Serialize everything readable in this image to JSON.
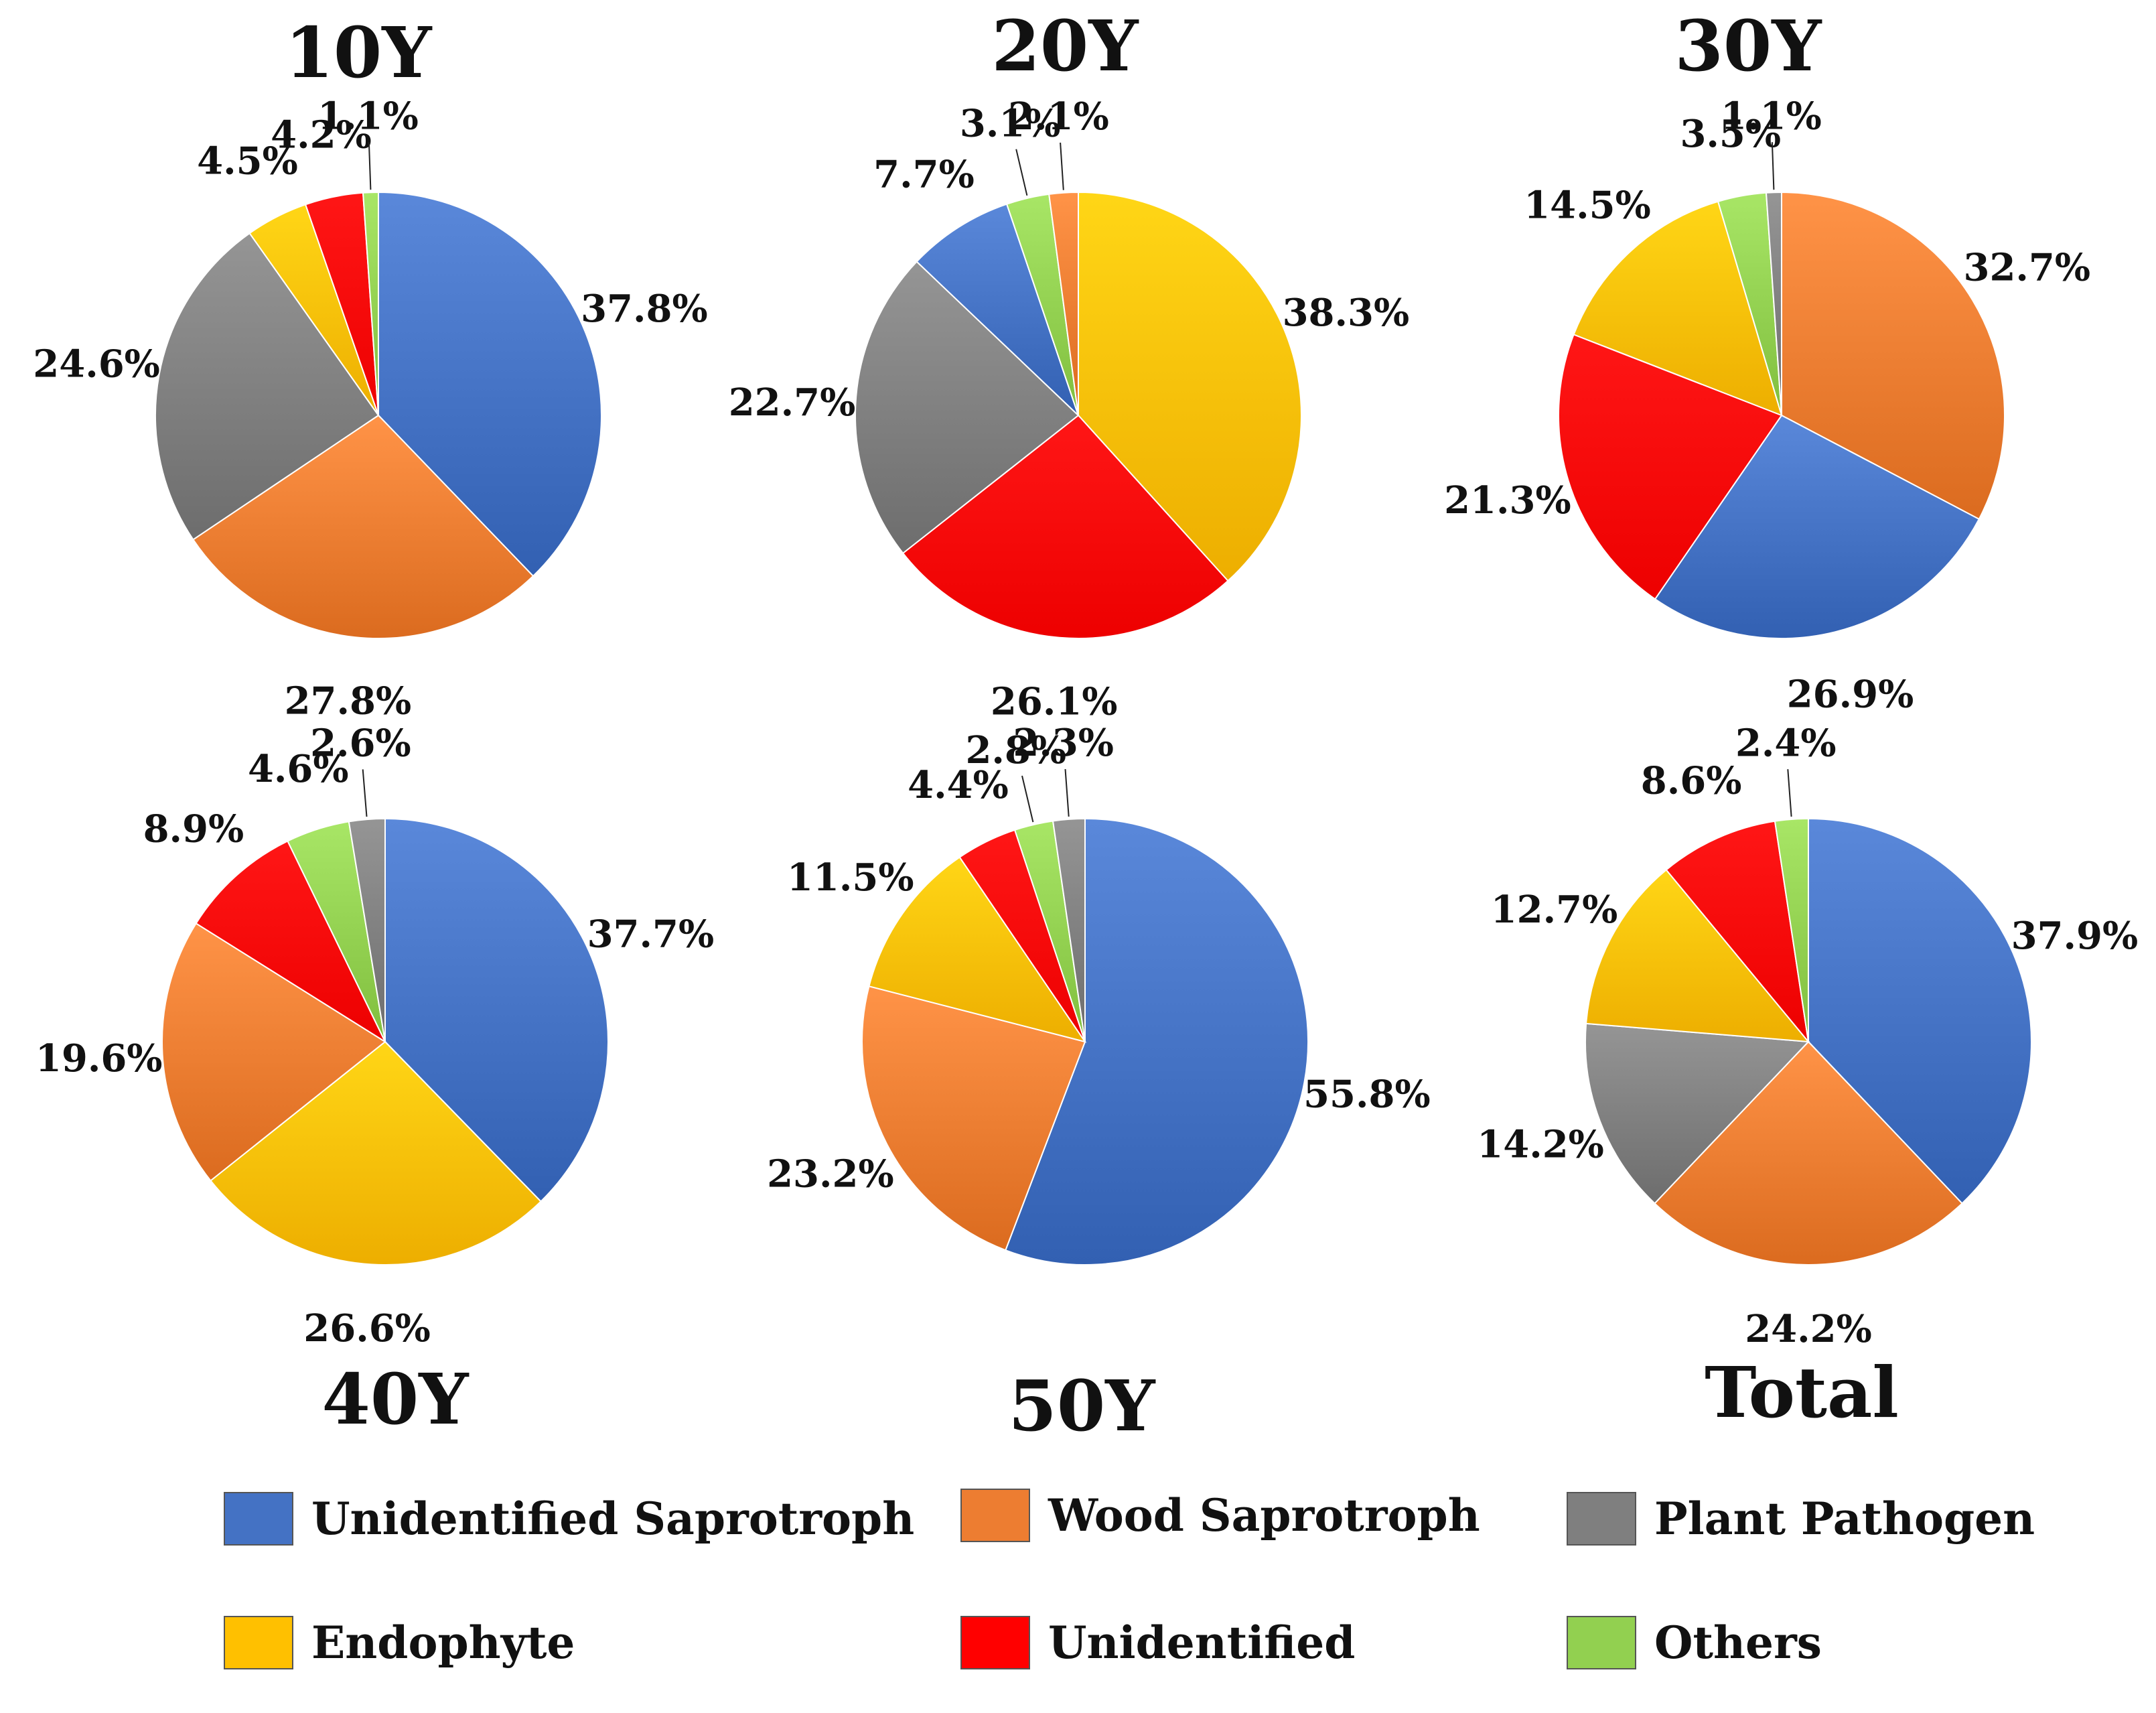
{
  "chart_data": {
    "type": "pie",
    "categories": [
      "Unidentified Saprotroph",
      "Wood Saprotroph",
      "Plant Pathogen",
      "Endophyte",
      "Unidentified",
      "Others"
    ],
    "colors": {
      "Unidentified Saprotroph": "#4472C4",
      "Wood Saprotroph": "#ED7D31",
      "Plant Pathogen": "#7F7F7F",
      "Endophyte": "#FFC000",
      "Unidentified": "#FF0000",
      "Others": "#92D050"
    },
    "charts": [
      {
        "title": "10Y",
        "slices": [
          {
            "category": "Unidentified Saprotroph",
            "value": 37.8,
            "label": "37.8%"
          },
          {
            "category": "Wood Saprotroph",
            "value": 27.8,
            "label": "27.8%"
          },
          {
            "category": "Plant Pathogen",
            "value": 24.6,
            "label": "24.6%"
          },
          {
            "category": "Endophyte",
            "value": 4.5,
            "label": "4.5%"
          },
          {
            "category": "Unidentified",
            "value": 4.2,
            "label": "4.2%"
          },
          {
            "category": "Others",
            "value": 1.1,
            "label": "1.1%"
          }
        ]
      },
      {
        "title": "20Y",
        "slices": [
          {
            "category": "Endophyte",
            "value": 38.3,
            "label": "38.3%"
          },
          {
            "category": "Unidentified",
            "value": 26.1,
            "label": "26.1%"
          },
          {
            "category": "Plant Pathogen",
            "value": 22.7,
            "label": "22.7%"
          },
          {
            "category": "Unidentified Saprotroph",
            "value": 7.7,
            "label": "7.7%"
          },
          {
            "category": "Others",
            "value": 3.1,
            "label": "3.1%"
          },
          {
            "category": "Wood Saprotroph",
            "value": 2.1,
            "label": "2.1%"
          }
        ]
      },
      {
        "title": "30Y",
        "slices": [
          {
            "category": "Wood Saprotroph",
            "value": 32.7,
            "label": "32.7%"
          },
          {
            "category": "Unidentified Saprotroph",
            "value": 26.9,
            "label": "26.9%"
          },
          {
            "category": "Unidentified",
            "value": 21.3,
            "label": "21.3%"
          },
          {
            "category": "Endophyte",
            "value": 14.5,
            "label": "14.5%"
          },
          {
            "category": "Others",
            "value": 3.5,
            "label": "3.5%"
          },
          {
            "category": "Plant Pathogen",
            "value": 1.1,
            "label": "1.1%"
          }
        ]
      },
      {
        "title": "40Y",
        "slices": [
          {
            "category": "Unidentified Saprotroph",
            "value": 37.7,
            "label": "37.7%"
          },
          {
            "category": "Endophyte",
            "value": 26.6,
            "label": "26.6%"
          },
          {
            "category": "Wood Saprotroph",
            "value": 19.6,
            "label": "19.6%"
          },
          {
            "category": "Unidentified",
            "value": 8.9,
            "label": "8.9%"
          },
          {
            "category": "Others",
            "value": 4.6,
            "label": "4.6%"
          },
          {
            "category": "Plant Pathogen",
            "value": 2.6,
            "label": "2.6%"
          }
        ]
      },
      {
        "title": "50Y",
        "slices": [
          {
            "category": "Unidentified Saprotroph",
            "value": 55.8,
            "label": "55.8%"
          },
          {
            "category": "Wood Saprotroph",
            "value": 23.2,
            "label": "23.2%"
          },
          {
            "category": "Endophyte",
            "value": 11.5,
            "label": "11.5%"
          },
          {
            "category": "Unidentified",
            "value": 4.4,
            "label": "4.4%"
          },
          {
            "category": "Others",
            "value": 2.8,
            "label": "2.8%"
          },
          {
            "category": "Plant Pathogen",
            "value": 2.3,
            "label": "2.3%"
          }
        ]
      },
      {
        "title": "Total",
        "slices": [
          {
            "category": "Unidentified Saprotroph",
            "value": 37.9,
            "label": "37.9%"
          },
          {
            "category": "Wood Saprotroph",
            "value": 24.2,
            "label": "24.2%"
          },
          {
            "category": "Plant Pathogen",
            "value": 14.2,
            "label": "14.2%"
          },
          {
            "category": "Endophyte",
            "value": 12.7,
            "label": "12.7%"
          },
          {
            "category": "Unidentified",
            "value": 8.6,
            "label": "8.6%"
          },
          {
            "category": "Others",
            "value": 2.4,
            "label": "2.4%"
          }
        ]
      }
    ],
    "legend": {
      "placement": "bottom",
      "items": [
        "Unidentified Saprotroph",
        "Wood Saprotroph",
        "Plant Pathogen",
        "Endophyte",
        "Unidentified",
        "Others"
      ]
    }
  }
}
